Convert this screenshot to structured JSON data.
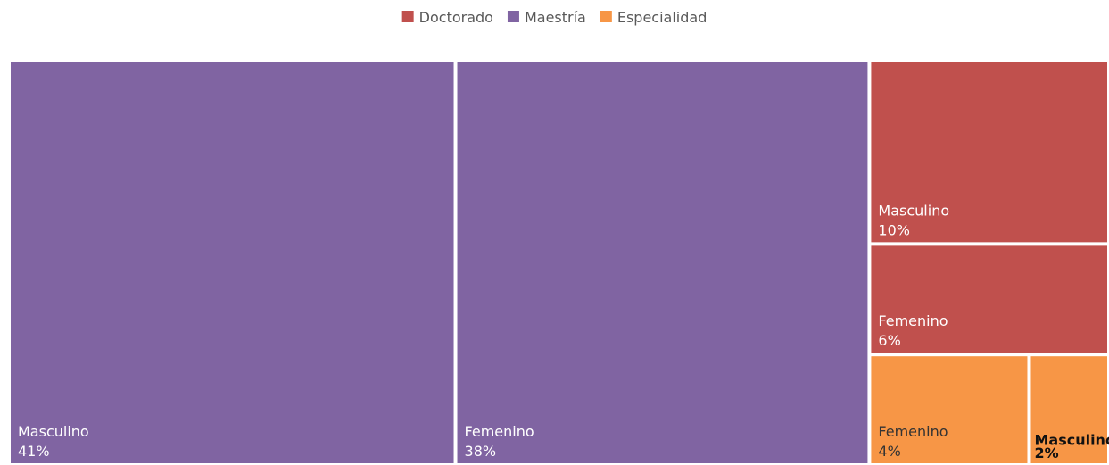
{
  "chart_data": {
    "type": "treemap",
    "series": [
      {
        "name": "Doctorado",
        "color": "#c0504d",
        "categories": [
          "Masculino",
          "Femenino"
        ],
        "values": [
          10,
          6
        ],
        "value_labels": [
          "10%",
          "6%"
        ]
      },
      {
        "name": "Maestría",
        "color": "#8064a2",
        "categories": [
          "Masculino",
          "Femenino"
        ],
        "values": [
          41,
          38
        ],
        "value_labels": [
          "41%",
          "38%"
        ]
      },
      {
        "name": "Especialidad",
        "color": "#f79646",
        "categories": [
          "Femenino",
          "Masculino"
        ],
        "values": [
          4,
          2
        ],
        "value_labels": [
          "4%",
          "2%"
        ]
      }
    ],
    "legend": "top"
  }
}
